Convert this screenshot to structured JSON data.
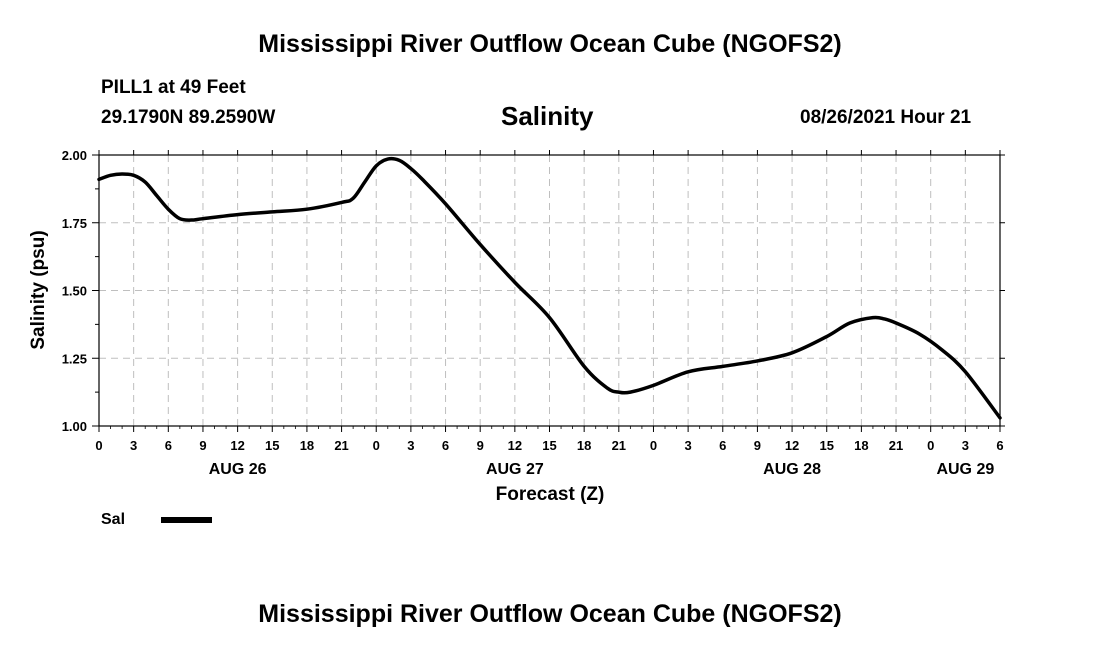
{
  "header": {
    "title": "Mississippi River Outflow Ocean Cube (NGOFS2)",
    "station": "PILL1 at 49 Feet",
    "coords": "29.1790N  89.2590W",
    "variable": "Salinity",
    "timestamp": "08/26/2021 Hour 21"
  },
  "footer": {
    "title": "Mississippi River Outflow Ocean Cube (NGOFS2)"
  },
  "colors": {
    "line": "#000000",
    "grid": "#bfbfbf"
  },
  "chart_data": {
    "type": "line",
    "ylabel": "Salinity (psu)",
    "xlabel": "Forecast (Z)",
    "ylim": [
      1.0,
      2.0
    ],
    "yticks": [
      "1.00",
      "1.25",
      "1.50",
      "1.75",
      "2.00"
    ],
    "xlim_hours": [
      0,
      78
    ],
    "xtick_labels": [
      "0",
      "3",
      "6",
      "9",
      "12",
      "15",
      "18",
      "21",
      "0",
      "3",
      "6",
      "9",
      "12",
      "15",
      "18",
      "21",
      "0",
      "3",
      "6",
      "9",
      "12",
      "15",
      "18",
      "21",
      "0",
      "3",
      "6"
    ],
    "day_labels": [
      {
        "label": "AUG 26",
        "hour": 12
      },
      {
        "label": "AUG 27",
        "hour": 36
      },
      {
        "label": "AUG 28",
        "hour": 60
      },
      {
        "label": "AUG 29",
        "hour": 75
      }
    ],
    "grid": true,
    "legend": {
      "label": "Sal",
      "placement": "bottom-left"
    },
    "series": [
      {
        "name": "Sal",
        "x": [
          0,
          1,
          2,
          3,
          4,
          5,
          6,
          7,
          8,
          9,
          12,
          15,
          18,
          21,
          22,
          23,
          24,
          25,
          26,
          27,
          28,
          30,
          33,
          36,
          39,
          42,
          44,
          45,
          46,
          48,
          51,
          54,
          57,
          60,
          63,
          65,
          67,
          68,
          69,
          71,
          73,
          75,
          78
        ],
        "y": [
          1.91,
          1.925,
          1.93,
          1.925,
          1.9,
          1.85,
          1.8,
          1.765,
          1.76,
          1.765,
          1.78,
          1.79,
          1.8,
          1.825,
          1.84,
          1.9,
          1.96,
          1.985,
          1.98,
          1.95,
          1.91,
          1.82,
          1.67,
          1.53,
          1.4,
          1.22,
          1.14,
          1.125,
          1.125,
          1.15,
          1.2,
          1.22,
          1.24,
          1.27,
          1.33,
          1.38,
          1.4,
          1.395,
          1.38,
          1.34,
          1.28,
          1.2,
          1.03
        ]
      }
    ]
  }
}
